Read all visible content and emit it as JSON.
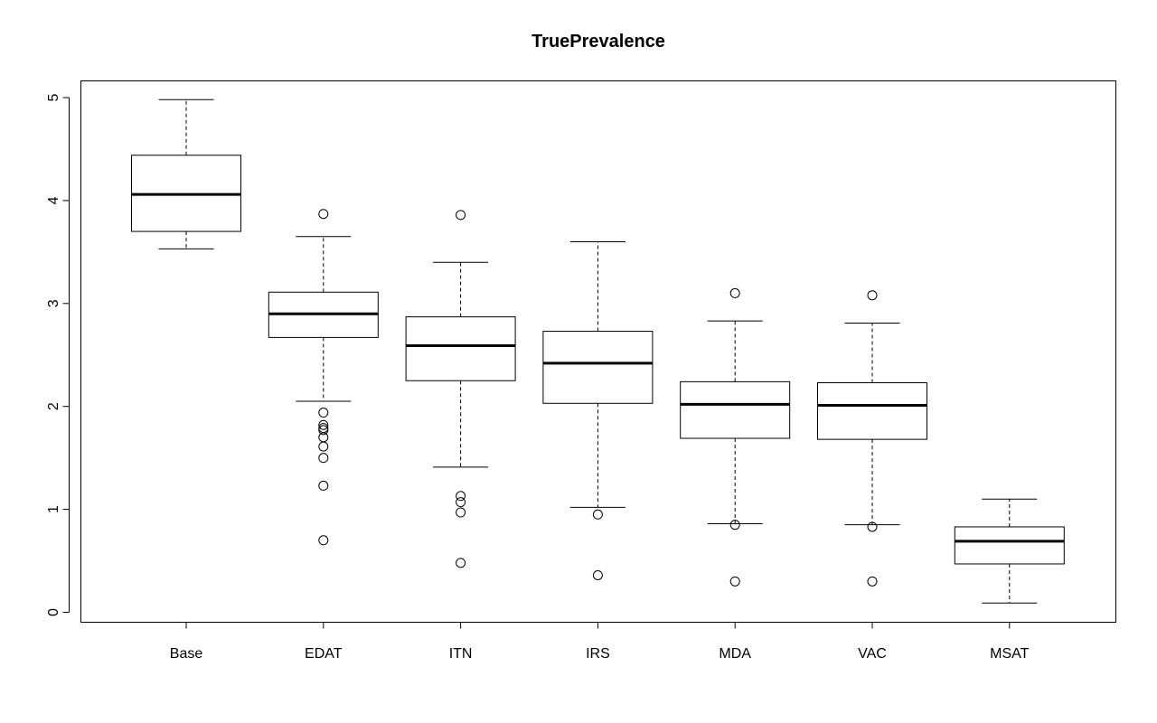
{
  "chart_data": {
    "type": "boxplot",
    "title": "TruePrevalence",
    "xlabel": "",
    "ylabel": "",
    "ylim": [
      0,
      5
    ],
    "yticks": [
      0,
      1,
      2,
      3,
      4,
      5
    ],
    "ytick_labels": [
      "0",
      "1",
      "2",
      "3",
      "4",
      "5"
    ],
    "categories": [
      "Base",
      "EDAT",
      "ITN",
      "IRS",
      "MDA",
      "VAC",
      "MSAT"
    ],
    "boxes": [
      {
        "name": "Base",
        "whisker_low": 3.53,
        "q1": 3.7,
        "median": 4.06,
        "q3": 4.44,
        "whisker_high": 4.98,
        "outliers": []
      },
      {
        "name": "EDAT",
        "whisker_low": 2.05,
        "q1": 2.67,
        "median": 2.9,
        "q3": 3.11,
        "whisker_high": 3.65,
        "outliers": [
          3.87,
          1.94,
          1.82,
          1.79,
          1.77,
          1.7,
          1.61,
          1.5,
          1.23,
          0.7
        ]
      },
      {
        "name": "ITN",
        "whisker_low": 1.41,
        "q1": 2.25,
        "median": 2.59,
        "q3": 2.87,
        "whisker_high": 3.4,
        "outliers": [
          3.86,
          1.13,
          1.07,
          0.97,
          0.48
        ]
      },
      {
        "name": "IRS",
        "whisker_low": 1.02,
        "q1": 2.03,
        "median": 2.42,
        "q3": 2.73,
        "whisker_high": 3.6,
        "outliers": [
          0.95,
          0.36
        ]
      },
      {
        "name": "MDA",
        "whisker_low": 0.86,
        "q1": 1.69,
        "median": 2.02,
        "q3": 2.24,
        "whisker_high": 2.83,
        "outliers": [
          3.1,
          0.85,
          0.3
        ]
      },
      {
        "name": "VAC",
        "whisker_low": 0.85,
        "q1": 1.68,
        "median": 2.01,
        "q3": 2.23,
        "whisker_high": 2.81,
        "outliers": [
          3.08,
          0.83,
          0.3
        ]
      },
      {
        "name": "MSAT",
        "whisker_low": 0.09,
        "q1": 0.47,
        "median": 0.69,
        "q3": 0.83,
        "whisker_high": 1.1,
        "outliers": []
      }
    ],
    "grid": false,
    "legend": "none"
  }
}
